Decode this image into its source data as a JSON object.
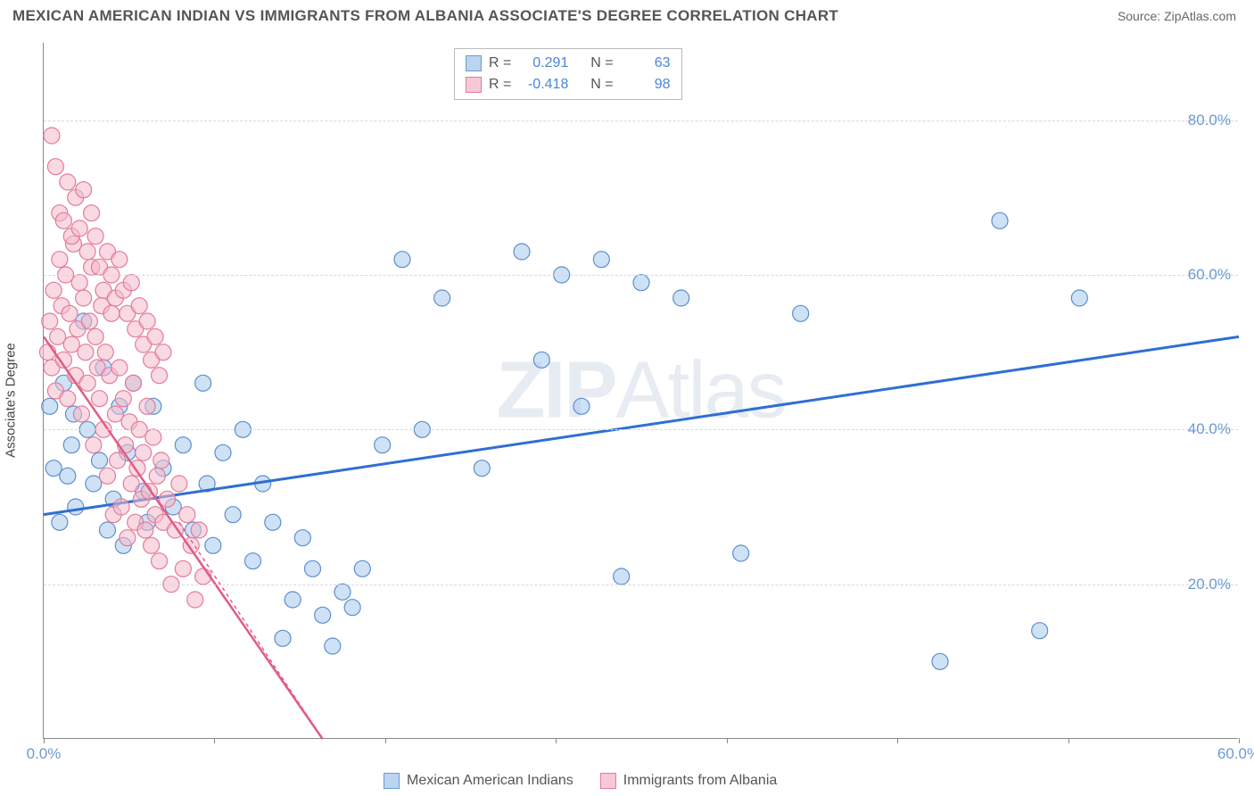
{
  "header": {
    "title": "MEXICAN AMERICAN INDIAN VS IMMIGRANTS FROM ALBANIA ASSOCIATE'S DEGREE CORRELATION CHART",
    "source": "Source: ZipAtlas.com"
  },
  "watermark": {
    "bold": "ZIP",
    "light": "Atlas"
  },
  "axes": {
    "y_label": "Associate's Degree",
    "xlim": [
      0,
      60
    ],
    "ylim": [
      0,
      90
    ],
    "y_ticks": [
      20,
      40,
      60,
      80
    ],
    "y_tick_labels": [
      "20.0%",
      "40.0%",
      "60.0%",
      "80.0%"
    ],
    "x_ticks": [
      0,
      8.57,
      17.14,
      25.71,
      34.29,
      42.86,
      51.43,
      60
    ],
    "x_tick_labels": {
      "0": "0.0%",
      "60": "60.0%"
    },
    "grid_color": "#d8d8d8",
    "axis_color": "#888888",
    "tick_label_color": "#6a9ad4",
    "tick_label_fontsize": 17
  },
  "stats": {
    "rows": [
      {
        "swatch_fill": "#bcd4ef",
        "swatch_border": "#6a9ad4",
        "r": "0.291",
        "n": "63"
      },
      {
        "swatch_fill": "#f7c9d6",
        "swatch_border": "#e47a9a",
        "r": "-0.418",
        "n": "98"
      }
    ],
    "label_r": "R =",
    "label_n": "N ="
  },
  "bottom_legend": {
    "items": [
      {
        "swatch_fill": "#bcd4ef",
        "swatch_border": "#6a9ad4",
        "label": "Mexican American Indians"
      },
      {
        "swatch_fill": "#f7c9d6",
        "swatch_border": "#e47a9a",
        "label": "Immigrants from Albania"
      }
    ]
  },
  "chart": {
    "type": "scatter",
    "background_color": "#ffffff",
    "marker_radius": 9,
    "marker_opacity": 0.55,
    "series": [
      {
        "name": "Mexican American Indians",
        "color_fill": "#a8c8ec",
        "color_stroke": "#5b8fce",
        "trend": {
          "x1": 0,
          "y1": 29,
          "x2": 60,
          "y2": 52,
          "color": "#2f6fd0",
          "width": 3,
          "dash": "none"
        },
        "points": [
          [
            0.3,
            43
          ],
          [
            0.5,
            35
          ],
          [
            0.8,
            28
          ],
          [
            1.0,
            46
          ],
          [
            1.2,
            34
          ],
          [
            1.4,
            38
          ],
          [
            1.5,
            42
          ],
          [
            1.6,
            30
          ],
          [
            2.0,
            54
          ],
          [
            2.2,
            40
          ],
          [
            2.5,
            33
          ],
          [
            2.8,
            36
          ],
          [
            3.0,
            48
          ],
          [
            3.2,
            27
          ],
          [
            3.5,
            31
          ],
          [
            3.8,
            43
          ],
          [
            4.0,
            25
          ],
          [
            4.2,
            37
          ],
          [
            4.5,
            46
          ],
          [
            5.0,
            32
          ],
          [
            5.2,
            28
          ],
          [
            5.5,
            43
          ],
          [
            6.0,
            35
          ],
          [
            6.5,
            30
          ],
          [
            7.0,
            38
          ],
          [
            7.5,
            27
          ],
          [
            8.0,
            46
          ],
          [
            8.2,
            33
          ],
          [
            8.5,
            25
          ],
          [
            9.0,
            37
          ],
          [
            9.5,
            29
          ],
          [
            10.0,
            40
          ],
          [
            10.5,
            23
          ],
          [
            11.0,
            33
          ],
          [
            11.5,
            28
          ],
          [
            12.0,
            13
          ],
          [
            12.5,
            18
          ],
          [
            13.0,
            26
          ],
          [
            13.5,
            22
          ],
          [
            14.0,
            16
          ],
          [
            14.5,
            12
          ],
          [
            15.0,
            19
          ],
          [
            15.5,
            17
          ],
          [
            16.0,
            22
          ],
          [
            17.0,
            38
          ],
          [
            18.0,
            62
          ],
          [
            19.0,
            40
          ],
          [
            20.0,
            57
          ],
          [
            22.0,
            35
          ],
          [
            24.0,
            63
          ],
          [
            25.0,
            49
          ],
          [
            26.0,
            60
          ],
          [
            27.0,
            43
          ],
          [
            28.0,
            62
          ],
          [
            29.0,
            21
          ],
          [
            30.0,
            59
          ],
          [
            32.0,
            57
          ],
          [
            35.0,
            24
          ],
          [
            38.0,
            55
          ],
          [
            45.0,
            10
          ],
          [
            48.0,
            67
          ],
          [
            50.0,
            14
          ],
          [
            52.0,
            57
          ]
        ]
      },
      {
        "name": "Immigrants from Albania",
        "color_fill": "#f4b9cb",
        "color_stroke": "#e47a9a",
        "trend": {
          "x1": 0,
          "y1": 52,
          "x2": 14,
          "y2": 0,
          "color": "#e05c84",
          "width": 2.5,
          "dash": "none",
          "dash_ext": {
            "x1": 6.8,
            "y1": 28,
            "x2": 14,
            "y2": 0,
            "dash": "4,4"
          }
        },
        "points": [
          [
            0.2,
            50
          ],
          [
            0.3,
            54
          ],
          [
            0.4,
            48
          ],
          [
            0.5,
            58
          ],
          [
            0.6,
            45
          ],
          [
            0.7,
            52
          ],
          [
            0.8,
            62
          ],
          [
            0.9,
            56
          ],
          [
            1.0,
            49
          ],
          [
            1.1,
            60
          ],
          [
            1.2,
            44
          ],
          [
            1.3,
            55
          ],
          [
            1.4,
            51
          ],
          [
            1.5,
            64
          ],
          [
            1.6,
            47
          ],
          [
            1.7,
            53
          ],
          [
            1.8,
            59
          ],
          [
            1.9,
            42
          ],
          [
            2.0,
            57
          ],
          [
            2.1,
            50
          ],
          [
            2.2,
            46
          ],
          [
            2.3,
            54
          ],
          [
            2.4,
            61
          ],
          [
            2.5,
            38
          ],
          [
            2.6,
            52
          ],
          [
            2.7,
            48
          ],
          [
            2.8,
            44
          ],
          [
            2.9,
            56
          ],
          [
            3.0,
            40
          ],
          [
            3.1,
            50
          ],
          [
            3.2,
            34
          ],
          [
            3.3,
            47
          ],
          [
            3.4,
            55
          ],
          [
            3.5,
            29
          ],
          [
            3.6,
            42
          ],
          [
            3.7,
            36
          ],
          [
            3.8,
            48
          ],
          [
            3.9,
            30
          ],
          [
            4.0,
            44
          ],
          [
            4.1,
            38
          ],
          [
            4.2,
            26
          ],
          [
            4.3,
            41
          ],
          [
            4.4,
            33
          ],
          [
            4.5,
            46
          ],
          [
            4.6,
            28
          ],
          [
            4.7,
            35
          ],
          [
            4.8,
            40
          ],
          [
            4.9,
            31
          ],
          [
            5.0,
            37
          ],
          [
            5.1,
            27
          ],
          [
            5.2,
            43
          ],
          [
            5.3,
            32
          ],
          [
            5.4,
            25
          ],
          [
            5.5,
            39
          ],
          [
            5.6,
            29
          ],
          [
            5.7,
            34
          ],
          [
            5.8,
            23
          ],
          [
            5.9,
            36
          ],
          [
            6.0,
            28
          ],
          [
            6.2,
            31
          ],
          [
            6.4,
            20
          ],
          [
            6.6,
            27
          ],
          [
            6.8,
            33
          ],
          [
            7.0,
            22
          ],
          [
            7.2,
            29
          ],
          [
            7.4,
            25
          ],
          [
            7.6,
            18
          ],
          [
            7.8,
            27
          ],
          [
            8.0,
            21
          ],
          [
            0.4,
            78
          ],
          [
            0.6,
            74
          ],
          [
            0.8,
            68
          ],
          [
            1.0,
            67
          ],
          [
            1.2,
            72
          ],
          [
            1.4,
            65
          ],
          [
            1.6,
            70
          ],
          [
            1.8,
            66
          ],
          [
            2.0,
            71
          ],
          [
            2.2,
            63
          ],
          [
            2.4,
            68
          ],
          [
            2.6,
            65
          ],
          [
            2.8,
            61
          ],
          [
            3.0,
            58
          ],
          [
            3.2,
            63
          ],
          [
            3.4,
            60
          ],
          [
            3.6,
            57
          ],
          [
            3.8,
            62
          ],
          [
            4.0,
            58
          ],
          [
            4.2,
            55
          ],
          [
            4.4,
            59
          ],
          [
            4.6,
            53
          ],
          [
            4.8,
            56
          ],
          [
            5.0,
            51
          ],
          [
            5.2,
            54
          ],
          [
            5.4,
            49
          ],
          [
            5.6,
            52
          ],
          [
            5.8,
            47
          ],
          [
            6.0,
            50
          ]
        ]
      }
    ]
  }
}
